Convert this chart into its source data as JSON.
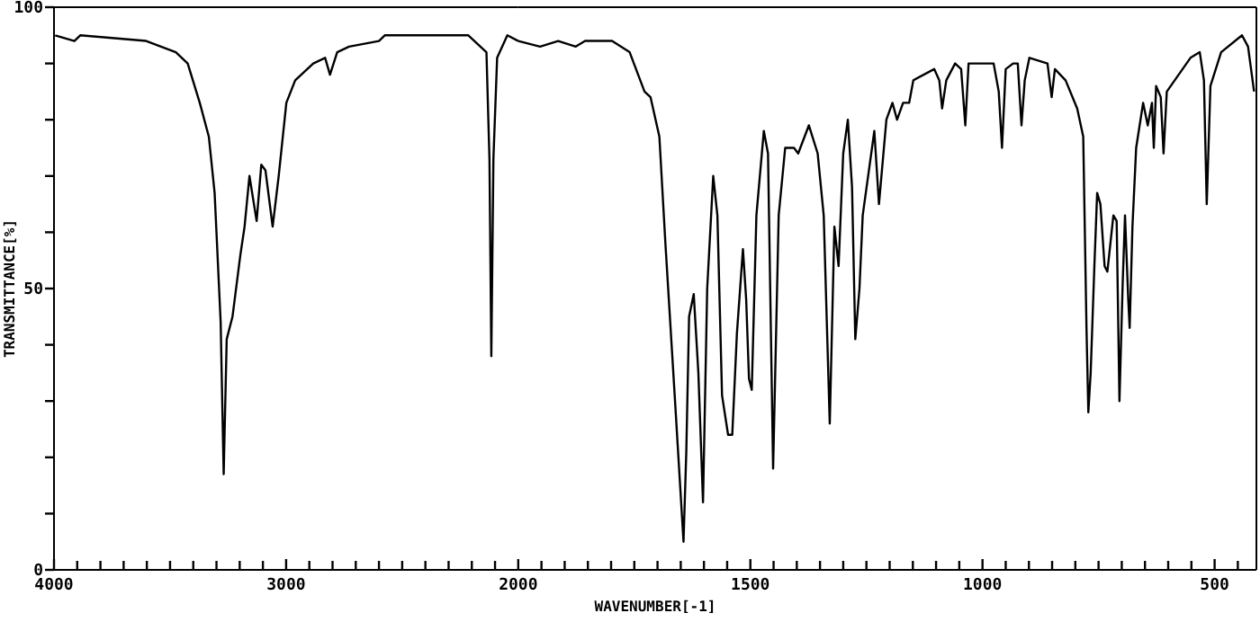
{
  "chart_data": [
    {
      "type": "line",
      "ylabel": "TRANSMITTANCE[%]",
      "xlim": [
        4000,
        2000
      ],
      "ylim": [
        0,
        100
      ],
      "xticks": [
        4000,
        {
          "value": 3900,
          "label": null
        },
        {
          "value": 3800,
          "label": null
        },
        {
          "value": 3700,
          "label": null
        },
        {
          "value": 3600,
          "label": null
        },
        {
          "value": 3500,
          "label": null
        },
        {
          "value": 3400,
          "label": null
        },
        {
          "value": 3300,
          "label": null
        },
        {
          "value": 3200,
          "label": null
        },
        {
          "value": 3100,
          "label": null
        },
        3000,
        {
          "value": 2900,
          "label": null
        },
        {
          "value": 2800,
          "label": null
        },
        {
          "value": 2700,
          "label": null
        },
        {
          "value": 2600,
          "label": null
        },
        {
          "value": 2500,
          "label": null
        },
        {
          "value": 2400,
          "label": null
        },
        {
          "value": 2300,
          "label": null
        },
        {
          "value": 2200,
          "label": null
        },
        {
          "value": 2100,
          "label": null
        }
      ],
      "yticks": [
        0,
        {
          "value": 10,
          "label": null
        },
        {
          "value": 20,
          "label": null
        },
        {
          "value": 30,
          "label": null
        },
        {
          "value": 40,
          "label": null
        },
        50,
        {
          "value": 60,
          "label": null
        },
        {
          "value": 70,
          "label": null
        },
        {
          "value": 80,
          "label": null
        },
        {
          "value": 90,
          "label": null
        },
        100
      ],
      "series": [
        {
          "color": "#000000",
          "x": [
            3995,
            3912,
            3887,
            3603,
            3475,
            3424,
            3372,
            3333,
            3308,
            3282,
            3269,
            3256,
            3231,
            3197,
            3179,
            3158,
            3127,
            3107,
            3089,
            3058,
            3032,
            2999,
            2961,
            2883,
            2832,
            2811,
            2780,
            2729,
            2600,
            2575,
            2420,
            2215,
            2163,
            2137,
            2124,
            2116,
            2107,
            2091,
            2047,
            2000
          ],
          "values": [
            95,
            94,
            95,
            94,
            92,
            90,
            83,
            77,
            67,
            44,
            17,
            41,
            45,
            56,
            61,
            70,
            62,
            72,
            71,
            61,
            70,
            83,
            87,
            90,
            91,
            88,
            92,
            93,
            94,
            95,
            95,
            95,
            93,
            92,
            73,
            38,
            73,
            91,
            95,
            94
          ]
        }
      ]
    },
    {
      "type": "line",
      "xlabel": "WAVENUMBER[-1]",
      "xlim": [
        2000,
        410
      ],
      "ylim": [
        0,
        100
      ],
      "tick_labels": "x",
      "xticks": [
        2000,
        {
          "value": 1950,
          "label": null
        },
        {
          "value": 1900,
          "label": null
        },
        {
          "value": 1850,
          "label": null
        },
        {
          "value": 1800,
          "label": null
        },
        {
          "value": 1750,
          "label": null
        },
        {
          "value": 1700,
          "label": null
        },
        {
          "value": 1650,
          "label": null
        },
        {
          "value": 1600,
          "label": null
        },
        {
          "value": 1550,
          "label": null
        },
        1500,
        {
          "value": 1450,
          "label": null
        },
        {
          "value": 1400,
          "label": null
        },
        {
          "value": 1350,
          "label": null
        },
        {
          "value": 1300,
          "label": null
        },
        {
          "value": 1250,
          "label": null
        },
        {
          "value": 1200,
          "label": null
        },
        {
          "value": 1150,
          "label": null
        },
        {
          "value": 1100,
          "label": null
        },
        {
          "value": 1050,
          "label": null
        },
        1000,
        {
          "value": 950,
          "label": null
        },
        {
          "value": 900,
          "label": null
        },
        {
          "value": 850,
          "label": null
        },
        {
          "value": 800,
          "label": null
        },
        {
          "value": 750,
          "label": null
        },
        {
          "value": 700,
          "label": null
        },
        {
          "value": 650,
          "label": null
        },
        {
          "value": 600,
          "label": null
        },
        {
          "value": 550,
          "label": null
        },
        500,
        {
          "value": 450,
          "label": null
        }
      ],
      "series": [
        {
          "color": "#000000",
          "x": [
            2000,
            1953,
            1914,
            1876,
            1856,
            1798,
            1760,
            1728,
            1715,
            1696,
            1683,
            1663,
            1644,
            1638,
            1632,
            1622,
            1612,
            1602,
            1593,
            1580,
            1571,
            1561,
            1548,
            1539,
            1529,
            1516,
            1509,
            1503,
            1497,
            1487,
            1471,
            1462,
            1451,
            1439,
            1425,
            1406,
            1397,
            1374,
            1355,
            1342,
            1329,
            1319,
            1310,
            1300,
            1290,
            1281,
            1274,
            1265,
            1258,
            1233,
            1223,
            1207,
            1194,
            1184,
            1171,
            1158,
            1149,
            1104,
            1093,
            1087,
            1078,
            1059,
            1046,
            1037,
            1030,
            976,
            965,
            958,
            950,
            934,
            924,
            916,
            909,
            899,
            860,
            851,
            844,
            821,
            796,
            783,
            776,
            772,
            767,
            759,
            753,
            746,
            737,
            731,
            718,
            711,
            705,
            698,
            693,
            686,
            683,
            677,
            669,
            654,
            644,
            635,
            631,
            626,
            616,
            610,
            603,
            552,
            532,
            523,
            517,
            509,
            486,
            441,
            428,
            415
          ],
          "values": [
            94,
            93,
            94,
            93,
            94,
            94,
            92,
            85,
            84,
            77,
            58,
            31,
            5,
            21,
            45,
            49,
            35,
            12,
            50,
            70,
            63,
            31,
            24,
            24,
            42,
            57,
            48,
            34,
            32,
            63,
            78,
            74,
            18,
            63,
            75,
            75,
            74,
            79,
            74,
            63,
            26,
            61,
            54,
            74,
            80,
            68,
            41,
            50,
            63,
            78,
            65,
            80,
            83,
            80,
            83,
            83,
            87,
            89,
            87,
            82,
            87,
            90,
            89,
            79,
            90,
            90,
            85,
            75,
            89,
            90,
            90,
            79,
            87,
            91,
            90,
            84,
            89,
            87,
            82,
            77,
            43,
            28,
            35,
            54,
            67,
            65,
            54,
            53,
            63,
            62,
            30,
            51,
            63,
            48,
            43,
            61,
            75,
            83,
            79,
            83,
            75,
            86,
            84,
            74,
            85,
            91,
            92,
            87,
            65,
            86,
            92,
            95,
            93,
            85
          ]
        }
      ]
    }
  ]
}
